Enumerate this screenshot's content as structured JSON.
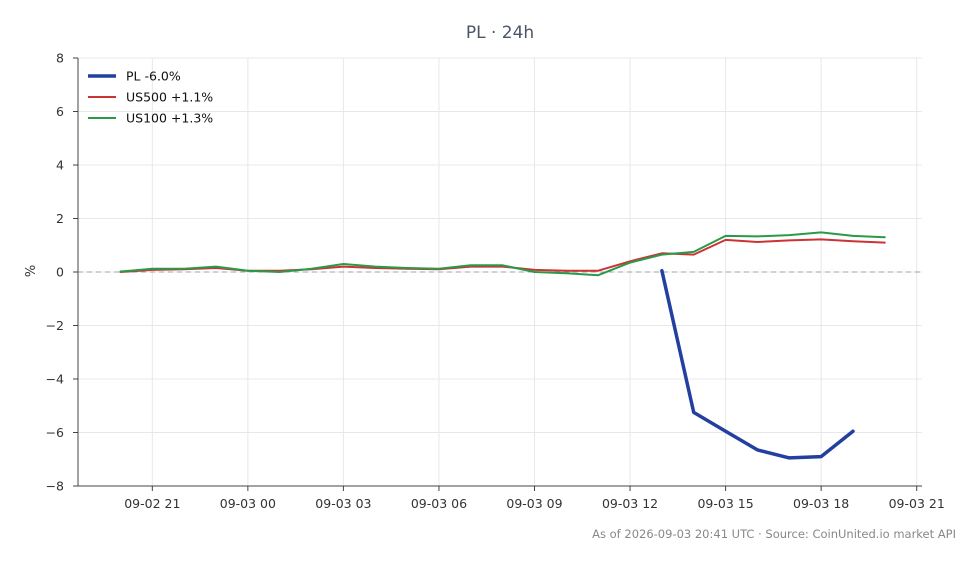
{
  "chart_data": {
    "type": "line",
    "title": "PL · 24h",
    "ylabel": "%",
    "xlabel": "",
    "ylim": [
      -8,
      8
    ],
    "yticks": [
      8,
      6,
      4,
      2,
      0,
      -2,
      -4,
      -6,
      -8
    ],
    "ytick_labels": [
      "8",
      "6",
      "4",
      "2",
      "0",
      "−2",
      "−4",
      "−6",
      "−8"
    ],
    "xlim": [
      "09-02 18:40",
      "09-03 21:10"
    ],
    "xticks": [
      "09-02 21:00",
      "09-03 00:00",
      "09-03 03:00",
      "09-03 06:00",
      "09-03 09:00",
      "09-03 12:00",
      "09-03 15:00",
      "09-03 18:00",
      "09-03 21:00"
    ],
    "xtick_labels": [
      "09-02 21",
      "09-03 00",
      "09-03 03",
      "09-03 06",
      "09-03 09",
      "09-03 12",
      "09-03 15",
      "09-03 18",
      "09-03 21"
    ],
    "grid": true,
    "zero_line": true,
    "legend_position": "top-left",
    "series": [
      {
        "name": "PL -6.0%",
        "color": "#2340a0",
        "width": 3.5,
        "x": [
          "09-03 13:00",
          "09-03 14:00",
          "09-03 15:00",
          "09-03 16:00",
          "09-03 17:00",
          "09-03 18:00",
          "09-03 19:00"
        ],
        "y": [
          0.05,
          -5.25,
          -5.95,
          -6.65,
          -6.95,
          -6.9,
          -5.95
        ]
      },
      {
        "name": "US500 +1.1%",
        "color": "#cc3333",
        "width": 2,
        "x": [
          "09-02 20:00",
          "09-02 21:00",
          "09-02 22:00",
          "09-02 23:00",
          "09-03 00:00",
          "09-03 01:00",
          "09-03 02:00",
          "09-03 03:00",
          "09-03 04:00",
          "09-03 05:00",
          "09-03 06:00",
          "09-03 07:00",
          "09-03 08:00",
          "09-03 09:00",
          "09-03 10:00",
          "09-03 11:00",
          "09-03 12:00",
          "09-03 13:00",
          "09-03 14:00",
          "09-03 15:00",
          "09-03 16:00",
          "09-03 17:00",
          "09-03 18:00",
          "09-03 19:00",
          "09-03 20:00"
        ],
        "y": [
          0.0,
          0.08,
          0.1,
          0.15,
          0.05,
          0.05,
          0.1,
          0.2,
          0.15,
          0.12,
          0.1,
          0.2,
          0.2,
          0.08,
          0.05,
          0.05,
          0.4,
          0.7,
          0.65,
          1.2,
          1.12,
          1.18,
          1.22,
          1.15,
          1.1
        ]
      },
      {
        "name": "US100 +1.3%",
        "color": "#2a9a48",
        "width": 2,
        "x": [
          "09-02 20:00",
          "09-02 21:00",
          "09-02 22:00",
          "09-02 23:00",
          "09-03 00:00",
          "09-03 01:00",
          "09-03 02:00",
          "09-03 03:00",
          "09-03 04:00",
          "09-03 05:00",
          "09-03 06:00",
          "09-03 07:00",
          "09-03 08:00",
          "09-03 09:00",
          "09-03 10:00",
          "09-03 11:00",
          "09-03 12:00",
          "09-03 13:00",
          "09-03 14:00",
          "09-03 15:00",
          "09-03 16:00",
          "09-03 17:00",
          "09-03 18:00",
          "09-03 19:00",
          "09-03 20:00"
        ],
        "y": [
          0.02,
          0.12,
          0.12,
          0.2,
          0.05,
          0.0,
          0.12,
          0.3,
          0.2,
          0.15,
          0.12,
          0.25,
          0.25,
          0.0,
          -0.05,
          -0.12,
          0.35,
          0.65,
          0.75,
          1.35,
          1.33,
          1.38,
          1.48,
          1.35,
          1.3
        ]
      }
    ],
    "footer": "As of 2026-09-03 20:41 UTC · Source: CoinUnited.io market API"
  }
}
